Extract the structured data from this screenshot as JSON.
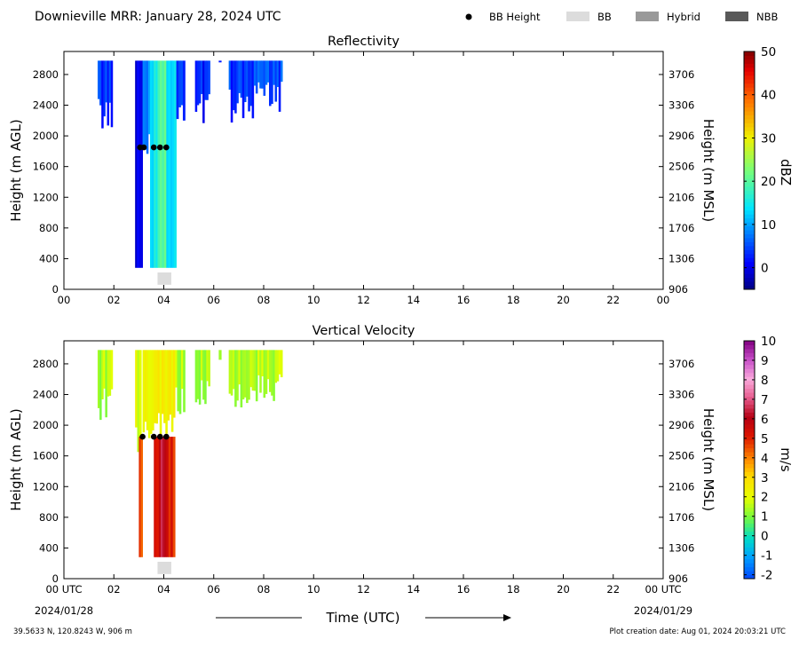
{
  "header": {
    "title": "Downieville MRR:  January 28, 2024 UTC",
    "legend": [
      {
        "label": "BB Height",
        "symbol": "dot",
        "color": "#000000"
      },
      {
        "label": "BB",
        "symbol": "rect",
        "color": "#dcdcdc"
      },
      {
        "label": "Hybrid",
        "symbol": "rect",
        "color": "#999999"
      },
      {
        "label": "NBB",
        "symbol": "rect",
        "color": "#595959"
      }
    ]
  },
  "footer": {
    "location": "39.5633 N, 120.8243 W, 906 m",
    "creation": "Plot creation date: Aug 01, 2024 20:03:21 UTC",
    "xlabel": "Time (UTC)",
    "start_date": "2024/01/28",
    "end_date": "2024/01/29"
  },
  "chart_data": [
    {
      "type": "heatmap",
      "title": "Reflectivity",
      "ylabel": "Height (m AGL)",
      "ylabel_right": "Height (m MSL)",
      "x_ticks": [
        "00",
        "02",
        "04",
        "06",
        "08",
        "10",
        "12",
        "14",
        "16",
        "18",
        "20",
        "22",
        "00"
      ],
      "xlim": [
        0,
        24
      ],
      "y_ticks": [
        0,
        400,
        800,
        1200,
        1600,
        2000,
        2400,
        2800
      ],
      "y_ticks_right": [
        906,
        1306,
        1706,
        2106,
        2506,
        2906,
        3306,
        3706
      ],
      "ylim": [
        0,
        3100
      ],
      "colorbar": {
        "label": "dBZ",
        "ticks": [
          0,
          10,
          20,
          30,
          40,
          50
        ],
        "range": [
          -5,
          50
        ],
        "scheme": "jet"
      },
      "bb_height": {
        "times": [
          3.05,
          3.2,
          3.6,
          3.85,
          4.1
        ],
        "height": 1850
      },
      "bb_marker": {
        "t0": 3.75,
        "t1": 4.3,
        "h0": 60,
        "h1": 220
      },
      "echo_columns": [
        {
          "t0": 1.35,
          "t1": 1.95,
          "bottom": 2200,
          "top": 2980,
          "value": 4
        },
        {
          "t0": 2.85,
          "t1": 3.15,
          "bottom": 280,
          "top": 2980,
          "value": 1
        },
        {
          "t0": 3.15,
          "t1": 3.45,
          "bottom": 1750,
          "top": 2980,
          "value": 8
        },
        {
          "t0": 3.45,
          "t1": 3.75,
          "bottom": 280,
          "top": 2980,
          "value": 14
        },
        {
          "t0": 3.75,
          "t1": 4.1,
          "bottom": 280,
          "top": 2980,
          "value": 19
        },
        {
          "t0": 4.1,
          "t1": 4.5,
          "bottom": 280,
          "top": 2980,
          "value": 12
        },
        {
          "t0": 4.5,
          "t1": 4.85,
          "bottom": 2280,
          "top": 2980,
          "value": 5
        },
        {
          "t0": 5.25,
          "t1": 5.85,
          "bottom": 2300,
          "top": 2980,
          "value": 3
        },
        {
          "t0": 6.2,
          "t1": 6.3,
          "bottom": 2850,
          "top": 2980,
          "value": 2
        },
        {
          "t0": 6.6,
          "t1": 7.6,
          "bottom": 2300,
          "top": 2980,
          "value": 4
        },
        {
          "t0": 7.6,
          "t1": 8.75,
          "bottom": 2420,
          "top": 2980,
          "value": 5
        }
      ]
    },
    {
      "type": "heatmap",
      "title": "Vertical Velocity",
      "ylabel": "Height (m AGL)",
      "ylabel_right": "Height (m MSL)",
      "x_ticks": [
        "00 UTC",
        "02",
        "04",
        "06",
        "08",
        "10",
        "12",
        "14",
        "16",
        "18",
        "20",
        "22",
        "00 UTC"
      ],
      "xlim": [
        0,
        24
      ],
      "y_ticks": [
        0,
        400,
        800,
        1200,
        1600,
        2000,
        2400,
        2800
      ],
      "y_ticks_right": [
        906,
        1306,
        1706,
        2106,
        2506,
        2906,
        3306,
        3706
      ],
      "ylim": [
        0,
        3100
      ],
      "colorbar": {
        "label": "m/s",
        "ticks": [
          -2,
          -1,
          0,
          1,
          2,
          3,
          4,
          5,
          6,
          7,
          8,
          9,
          10
        ],
        "range": [
          -2.2,
          10
        ],
        "scheme": "velocity"
      },
      "bb_height": {
        "times": [
          3.15,
          3.6,
          3.85,
          4.1
        ],
        "height": 1850
      },
      "bb_marker": {
        "t0": 3.75,
        "t1": 4.3,
        "h0": 60,
        "h1": 220
      },
      "echo_columns": [
        {
          "t0": 1.35,
          "t1": 1.95,
          "bottom": 2200,
          "top": 2980,
          "value": 1.5
        },
        {
          "t0": 2.85,
          "t1": 3.1,
          "bottom": 1750,
          "top": 2980,
          "value": 2.0
        },
        {
          "t0": 3.0,
          "t1": 3.15,
          "bottom": 280,
          "top": 1850,
          "value": 4.5
        },
        {
          "t0": 3.15,
          "t1": 3.6,
          "bottom": 1750,
          "top": 2980,
          "value": 2.0
        },
        {
          "t0": 3.6,
          "t1": 3.8,
          "bottom": 280,
          "top": 1850,
          "value": 5.5
        },
        {
          "t0": 3.8,
          "t1": 4.1,
          "bottom": 280,
          "top": 1850,
          "value": 6.2
        },
        {
          "t0": 4.1,
          "t1": 4.45,
          "bottom": 280,
          "top": 1850,
          "value": 5.0
        },
        {
          "t0": 3.6,
          "t1": 4.45,
          "bottom": 1850,
          "top": 2980,
          "value": 2.3
        },
        {
          "t0": 4.45,
          "t1": 4.85,
          "bottom": 2280,
          "top": 2980,
          "value": 1.6
        },
        {
          "t0": 5.25,
          "t1": 5.85,
          "bottom": 2300,
          "top": 2980,
          "value": 1.3
        },
        {
          "t0": 6.2,
          "t1": 6.3,
          "bottom": 2850,
          "top": 2980,
          "value": 1.5
        },
        {
          "t0": 6.6,
          "t1": 7.6,
          "bottom": 2300,
          "top": 2980,
          "value": 1.5
        },
        {
          "t0": 7.6,
          "t1": 8.75,
          "bottom": 2420,
          "top": 2980,
          "value": 1.6
        }
      ]
    }
  ]
}
